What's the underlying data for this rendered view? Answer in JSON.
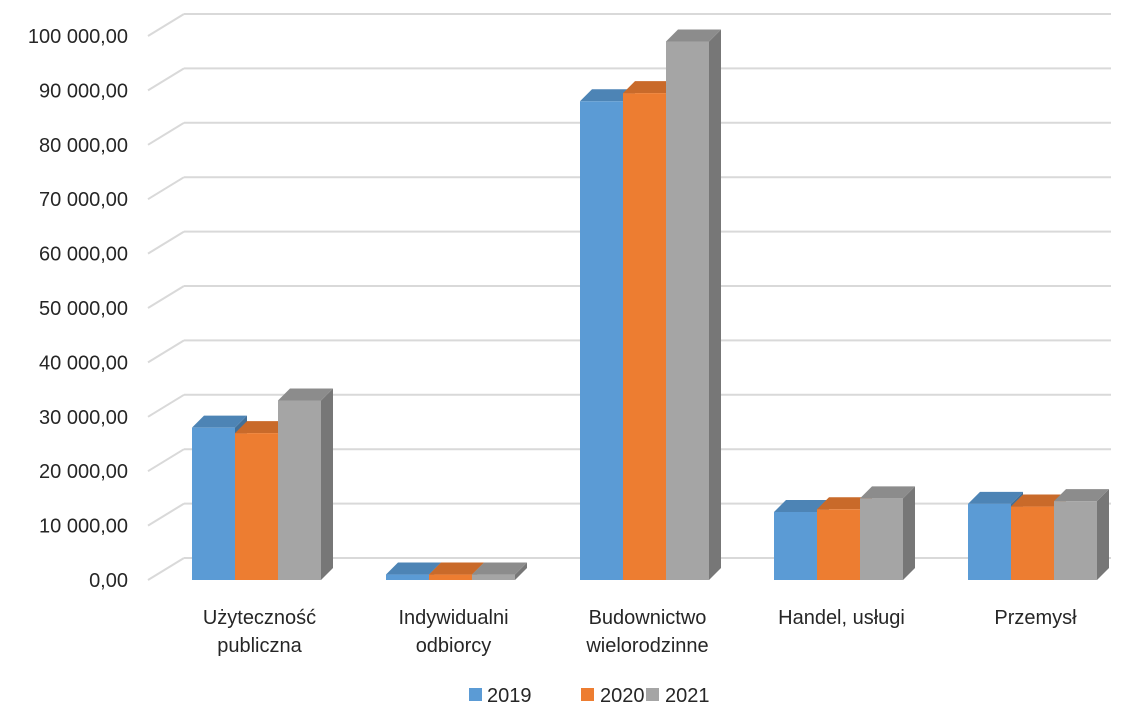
{
  "chart_data": {
    "type": "bar",
    "title": "",
    "xlabel": "",
    "ylabel": "",
    "categories": [
      [
        "Użyteczność",
        "publiczna"
      ],
      [
        "Indywidualni",
        "odbiorcy"
      ],
      [
        "Budownictwo",
        "wielorodzinne"
      ],
      [
        "Handel, usługi"
      ],
      [
        "Przemysł"
      ]
    ],
    "series": [
      {
        "name": "2019",
        "color": "#5B9BD5",
        "values": [
          28000,
          1000,
          88000,
          12500,
          14000
        ]
      },
      {
        "name": "2020",
        "color": "#ED7D31",
        "values": [
          27000,
          1000,
          89500,
          13000,
          13500
        ]
      },
      {
        "name": "2021",
        "color": "#A5A5A5",
        "values": [
          33000,
          1000,
          99000,
          15000,
          14500
        ]
      }
    ],
    "ylim": [
      0,
      100000
    ],
    "yticks": [
      "0,00",
      "10 000,00",
      "20 000,00",
      "30 000,00",
      "40 000,00",
      "50 000,00",
      "60 000,00",
      "70 000,00",
      "80 000,00",
      "90 000,00",
      "100 000,00"
    ],
    "grid": true,
    "legend_position": "bottom",
    "style": "3d-clustered-column"
  }
}
